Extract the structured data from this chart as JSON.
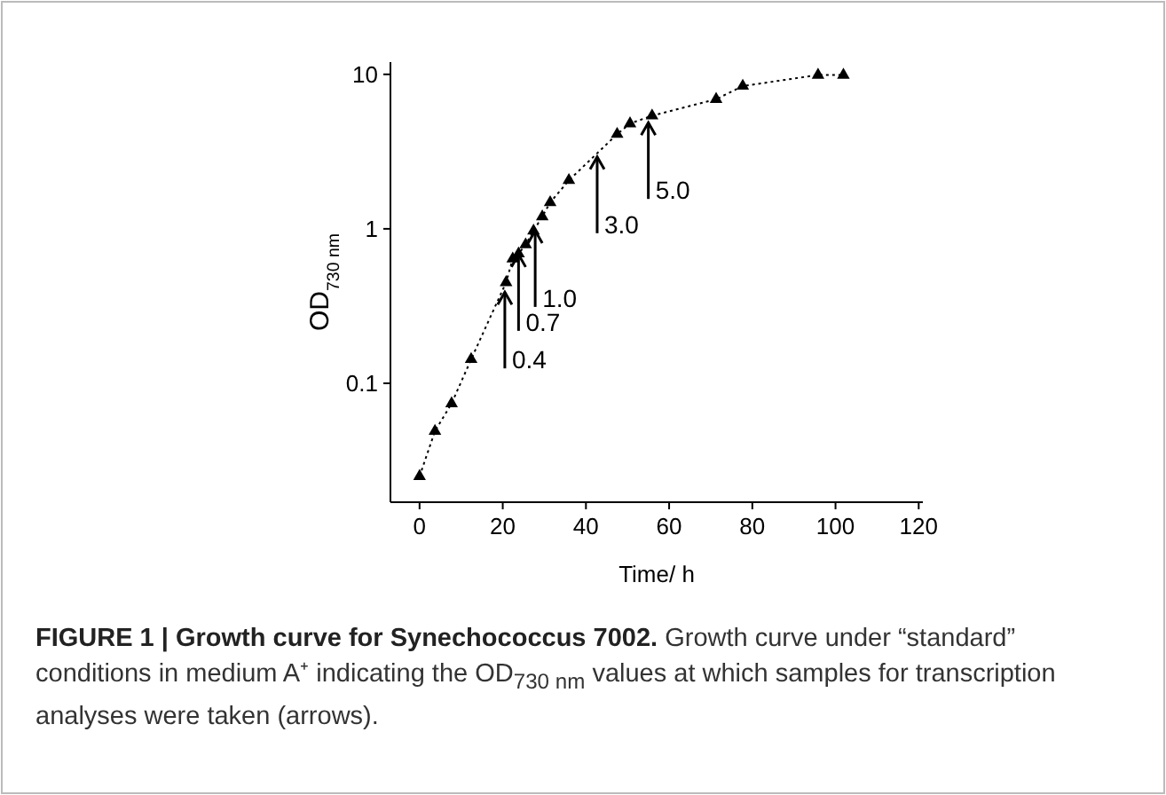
{
  "chart_data": {
    "type": "line",
    "title": "FIGURE 1 | Growth curve for Synechococcus 7002.",
    "subtitle": "Growth curve under “standard” conditions in medium A⁺ indicating the OD$_{730 nm}$ values at which samples for transcription analyses were taken (arrows).",
    "xlabel": "Time/ h",
    "ylabel": "OD$_{730 nm}$",
    "x": [
      0,
      3.7,
      7.7,
      12.4,
      20.8,
      22.4,
      23.8,
      25.5,
      27.4,
      29.5,
      31.4,
      35.9,
      47.5,
      50.6,
      55.9,
      71.3,
      77.7,
      95.8,
      101.9
    ],
    "series": [
      {
        "color": "#000000",
        "values": [
          0.025,
          0.049,
          0.074,
          0.143,
          0.45,
          0.64,
          0.69,
          0.79,
          0.97,
          1.2,
          1.48,
          2.06,
          4.1,
          4.8,
          5.4,
          6.9,
          8.4,
          9.9,
          9.9
        ]
      }
    ],
    "xlim": [
      -7,
      121
    ],
    "xticks": [
      0,
      20,
      40,
      60,
      80,
      100,
      120
    ],
    "ylim": [
      0.017,
      12
    ],
    "yticks": [
      0.1,
      1,
      10
    ],
    "log": true,
    "grid": false,
    "marker": "triangle",
    "line_style": "dotted",
    "annotations": [
      {
        "text": "0.4",
        "x": 20.5,
        "y": 0.4
      },
      {
        "text": "0.7",
        "x": 23.8,
        "y": 0.7
      },
      {
        "text": "1.0",
        "x": 27.8,
        "y": 1.0
      },
      {
        "text": "3.0",
        "x": 42.7,
        "y": 3.0
      },
      {
        "text": "5.0",
        "x": 55,
        "y": 5.0
      }
    ]
  }
}
